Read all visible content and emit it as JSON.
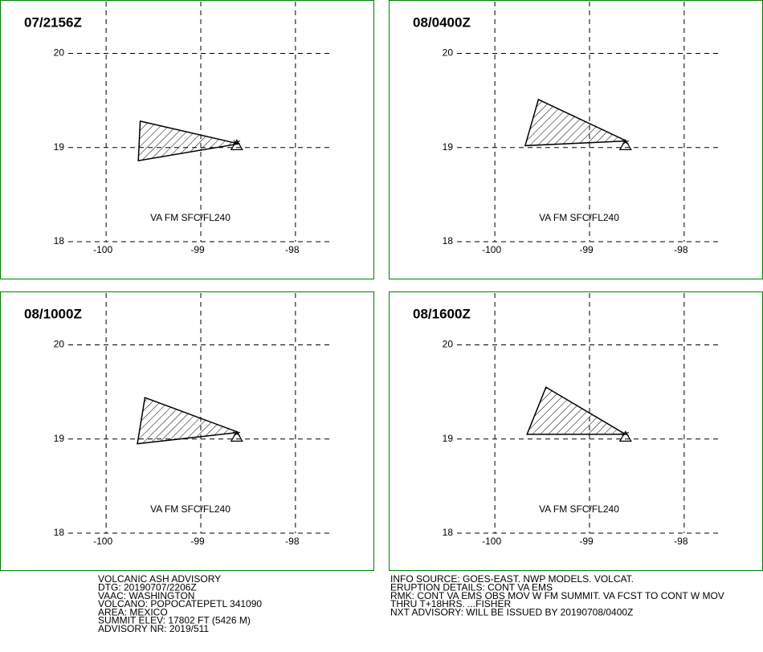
{
  "chart_data": [
    {
      "type": "polygon",
      "title": "07/2156Z",
      "annotation": "VA FM SFC/FL240",
      "xlim": [
        -100.4,
        -97.6
      ],
      "ylim": [
        18,
        20.55
      ],
      "xticks": [
        -100,
        -99,
        -98
      ],
      "yticks": [
        18,
        19,
        20
      ],
      "grid": true,
      "x": [
        -99.64,
        -98.6,
        -99.66
      ],
      "y": [
        19.28,
        19.04,
        18.86
      ],
      "color": "#000000",
      "volcano_x": -98.62,
      "volcano_y": 19.02
    },
    {
      "type": "polygon",
      "title": "08/0400Z",
      "annotation": "VA FM SFC/FL240",
      "xlim": [
        -100.4,
        -97.6
      ],
      "ylim": [
        18,
        20.55
      ],
      "xticks": [
        -100,
        -99,
        -98
      ],
      "yticks": [
        18,
        19,
        20
      ],
      "grid": true,
      "x": [
        -99.54,
        -98.61,
        -99.68
      ],
      "y": [
        19.51,
        19.07,
        19.02
      ],
      "color": "#000000",
      "volcano_x": -98.62,
      "volcano_y": 19.02
    },
    {
      "type": "polygon",
      "title": "08/1000Z",
      "annotation": "VA FM SFC/FL240",
      "xlim": [
        -100.4,
        -97.6
      ],
      "ylim": [
        18,
        20.55
      ],
      "xticks": [
        -100,
        -99,
        -98
      ],
      "yticks": [
        18,
        19,
        20
      ],
      "grid": true,
      "x": [
        -99.59,
        -98.6,
        -99.67
      ],
      "y": [
        19.44,
        19.07,
        18.95
      ],
      "color": "#000000",
      "volcano_x": -98.62,
      "volcano_y": 19.02
    },
    {
      "type": "polygon",
      "title": "08/1600Z",
      "annotation": "VA FM SFC/FL240",
      "xlim": [
        -100.4,
        -97.6
      ],
      "ylim": [
        18,
        20.55
      ],
      "xticks": [
        -100,
        -99,
        -98
      ],
      "yticks": [
        18,
        19,
        20
      ],
      "grid": true,
      "x": [
        -99.46,
        -98.62,
        -99.66
      ],
      "y": [
        19.55,
        19.05,
        19.05
      ],
      "color": "#000000",
      "volcano_x": -98.62,
      "volcano_y": 19.02
    }
  ],
  "advisory": {
    "left": [
      "VOLCANIC ASH ADVISORY",
      "DTG: 20190707/2206Z",
      "VAAC: WASHINGTON",
      "VOLCANO: POPOCATEPETL 341090",
      "AREA: MEXICO",
      "SUMMIT ELEV: 17802 FT (5426 M)",
      "ADVISORY NR: 2019/511"
    ],
    "right": [
      "INFO SOURCE: GOES-EAST. NWP MODELS. VOLCAT.",
      "ERUPTION DETAILS: CONT VA EMS",
      "RMK: CONT VA EMS OBS MOV W FM SUMMIT. VA FCST TO CONT W MOV",
      "THRU T+18HRS. ...FISHER",
      "NXT ADVISORY: WILL BE ISSUED BY 20190708/0400Z"
    ]
  }
}
